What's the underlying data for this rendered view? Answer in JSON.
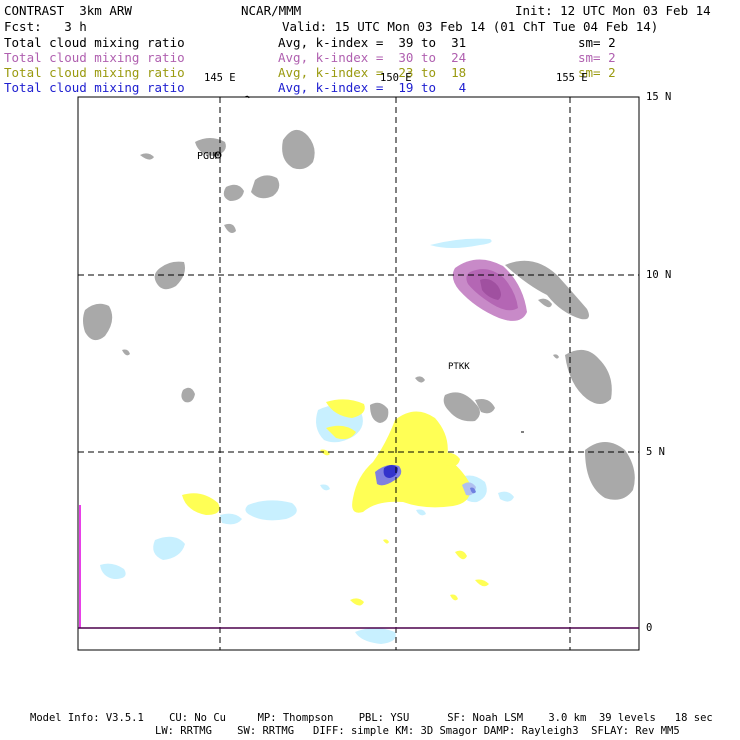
{
  "header": {
    "model": "CONTRAST  3km ARW",
    "org": "NCAR/MMM",
    "init": "Init: 12 UTC Mon 03 Feb 14",
    "fcst": "Fcst:   3 h",
    "valid": "Valid: 15 UTC Mon 03 Feb 14 (01 ChT Tue 04 Feb 14)"
  },
  "legend": [
    {
      "label": "Total cloud mixing ratio",
      "stats": "Avg, k-index =  39 to  31",
      "sm": "sm= 2",
      "color": "#000000"
    },
    {
      "label": "Total cloud mixing ratio",
      "stats": "Avg, k-index =  30 to  24",
      "sm": "sm= 2",
      "color": "#b060b0"
    },
    {
      "label": "Total cloud mixing ratio",
      "stats": "Avg, k-index =  23 to  18",
      "sm": "sm= 2",
      "color": "#9a9a10"
    },
    {
      "label": "Total cloud mixing ratio",
      "stats": "Avg, k-index =  19 to   4",
      "sm": "",
      "color": "#2020d0"
    }
  ],
  "map": {
    "lon_labels": [
      "145 E",
      "150 E",
      "155 E"
    ],
    "lat_labels": [
      "15 N",
      "10 N",
      "5 N",
      "0"
    ],
    "stations": [
      "PGUM",
      "PTKK"
    ],
    "colors": {
      "high_cloud": "#a0a0a0",
      "mid_cloud": "#b466b4",
      "low_cloud": "#ffff55",
      "lowest_cloud": "#3333cc",
      "light_cloud": "#c8f0ff",
      "boundary": "#e000e0"
    }
  },
  "footer": {
    "line1": "Model Info: V3.5.1    CU: No Cu     MP: Thompson    PBL: YSU      SF: Noah LSM    3.0 km  39 levels   18 sec",
    "line2": "LW: RRTMG    SW: RRTMG   DIFF: simple KM: 3D Smagor DAMP: Rayleigh3  SFLAY: Rev MM5"
  }
}
